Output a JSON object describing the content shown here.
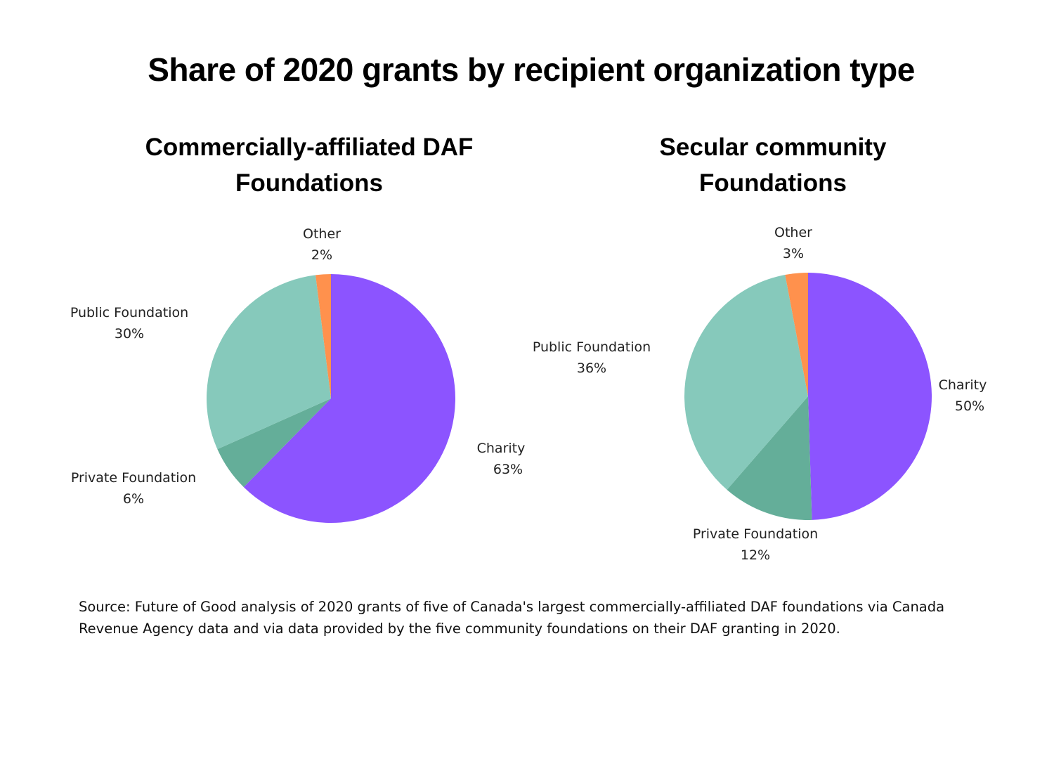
{
  "title": "Share of 2020 grants by recipient organization type",
  "source": "Source: Future of Good analysis of 2020 grants of five of Canada's largest commercially-affiliated DAF foundations via Canada Revenue Agency data and via data provided by the five community foundations on their DAF granting in 2020.",
  "colors": {
    "Charity": "#8C54FF",
    "Private Foundation": "#64AE99",
    "Public Foundation": "#86C9BB",
    "Other": "#FF914D"
  },
  "chart_data": [
    {
      "type": "pie",
      "title": "Commercially-affiliated DAF Foundations",
      "title_lines": [
        "Commercially-affiliated DAF",
        "Foundations"
      ],
      "labels": [
        "Charity",
        "Private Foundation",
        "Public Foundation",
        "Other"
      ],
      "values": [
        63,
        6,
        30,
        2
      ],
      "value_labels": [
        "63%",
        "6%",
        "30%",
        "2%"
      ],
      "start": "12 o'clock, clockwise"
    },
    {
      "type": "pie",
      "title": "Secular community Foundations",
      "title_lines": [
        "Secular community",
        "Foundations"
      ],
      "labels": [
        "Charity",
        "Private Foundation",
        "Public Foundation",
        "Other"
      ],
      "values": [
        50,
        12,
        36,
        3
      ],
      "value_labels": [
        "50%",
        "12%",
        "36%",
        "3%"
      ],
      "start": "12 o'clock, clockwise"
    }
  ]
}
